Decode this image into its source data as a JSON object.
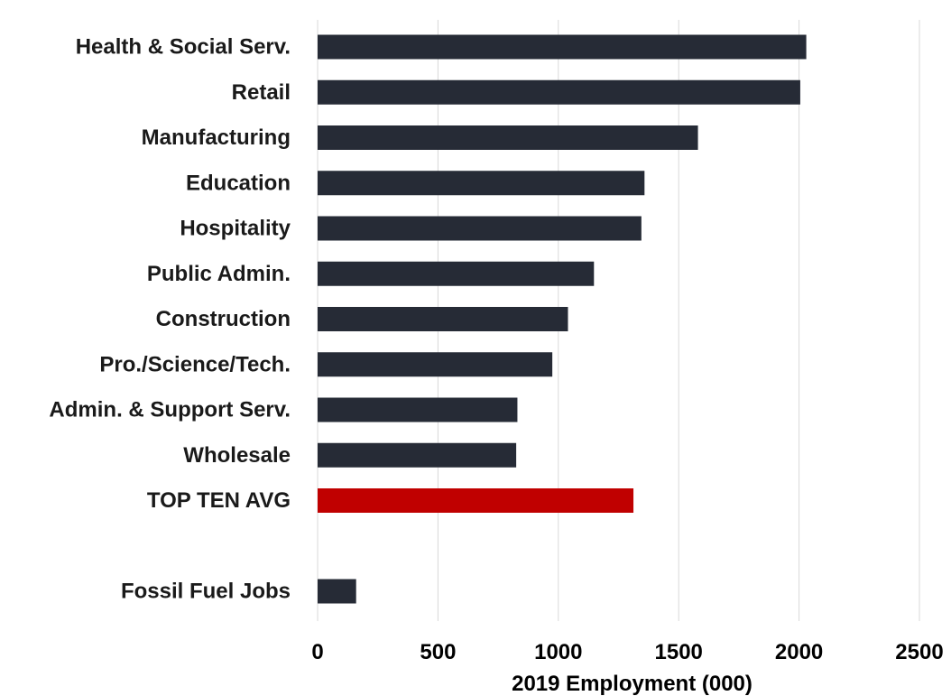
{
  "chart_data": {
    "type": "bar",
    "orientation": "horizontal",
    "title": "",
    "xlabel": "2019 Employment (000)",
    "ylabel": "",
    "xlim": [
      0,
      2500
    ],
    "xticks": [
      0,
      500,
      1000,
      1500,
      2000,
      2500
    ],
    "xtick_labels": [
      "0",
      "500",
      "1000",
      "1500",
      "2000",
      "2500"
    ],
    "grid": true,
    "categories": [
      "Health & Social Serv.",
      "Retail",
      "Manufacturing",
      "Education",
      "Hospitality",
      "Public Admin.",
      "Construction",
      "Pro./Science/Tech.",
      "Admin. & Support Serv.",
      "Wholesale",
      "TOP TEN AVG",
      "",
      "Fossil Fuel Jobs"
    ],
    "values": [
      2030,
      2005,
      1580,
      1358,
      1345,
      1148,
      1040,
      975,
      830,
      825,
      1312,
      null,
      160
    ],
    "colors": {
      "default": "#262b36",
      "highlight": "#c00000",
      "highlight_category": "TOP TEN AVG"
    }
  }
}
